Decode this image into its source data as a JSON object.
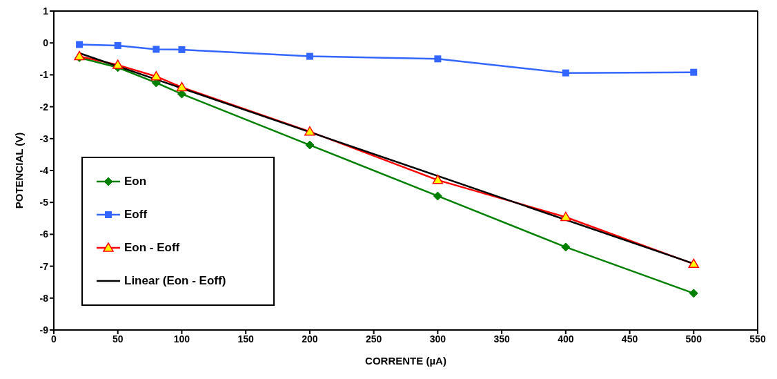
{
  "chart_data": {
    "type": "line",
    "xlabel": "CORRENTE (µA)",
    "ylabel": "POTENCIAL (V)",
    "xlim": [
      0,
      550
    ],
    "xticks": [
      0,
      50,
      100,
      150,
      200,
      250,
      300,
      350,
      400,
      450,
      500,
      550
    ],
    "ylim": [
      -9,
      1
    ],
    "yticks": [
      -9,
      -8,
      -7,
      -6,
      -5,
      -4,
      -3,
      -2,
      -1,
      0,
      1
    ],
    "grid": false,
    "legend": "bottom left",
    "line_style": "solid",
    "series": [
      {
        "name": "Eon",
        "color": "#008000",
        "marker": "diamond",
        "x": [
          20,
          50,
          80,
          100,
          200,
          300,
          400,
          500
        ],
        "values": [
          -0.46,
          -0.77,
          -1.25,
          -1.6,
          -3.2,
          -4.8,
          -6.4,
          -7.85
        ]
      },
      {
        "name": "Eoff",
        "color": "#3366ff",
        "marker": "square",
        "x": [
          20,
          50,
          80,
          100,
          200,
          300,
          400,
          500
        ],
        "values": [
          -0.05,
          -0.08,
          -0.2,
          -0.21,
          -0.42,
          -0.5,
          -0.94,
          -0.92
        ]
      },
      {
        "name": "Eon - Eoff",
        "color": "#ff0000",
        "marker": "triangle",
        "x": [
          20,
          50,
          80,
          100,
          200,
          300,
          400,
          500
        ],
        "values": [
          -0.42,
          -0.69,
          -1.05,
          -1.39,
          -2.78,
          -4.3,
          -5.46,
          -6.93
        ]
      },
      {
        "name": "Linear (Eon - Eoff)",
        "color": "#000000",
        "marker": "none",
        "x": [
          20,
          500
        ],
        "values": [
          -0.32,
          -6.92
        ]
      }
    ]
  }
}
